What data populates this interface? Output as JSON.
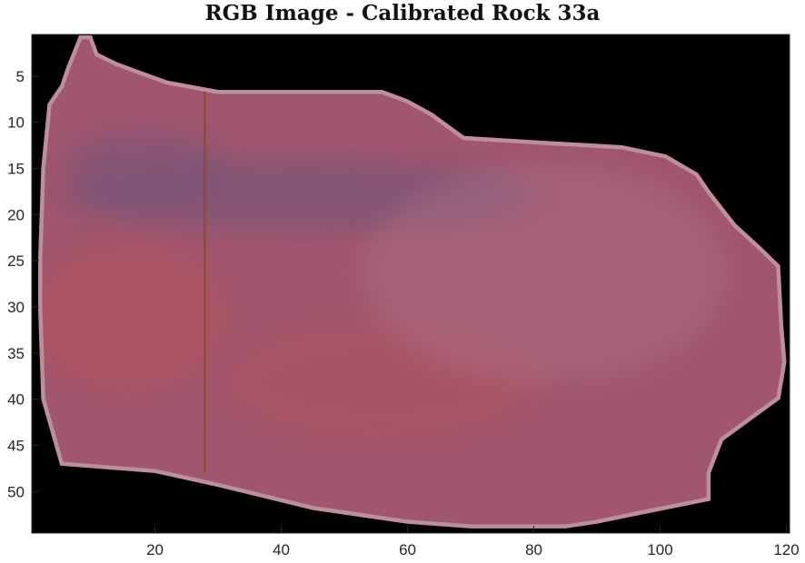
{
  "title": "RGB Image - Calibrated Rock 33a",
  "axes": {
    "x": {
      "range": [
        0.5,
        120.5
      ],
      "ticks": [
        20,
        40,
        60,
        80,
        100,
        120
      ]
    },
    "y": {
      "range": [
        0.5,
        54.5
      ],
      "ticks": [
        5,
        10,
        15,
        20,
        25,
        30,
        35,
        40,
        45,
        50
      ],
      "reversed": true
    }
  },
  "image": {
    "background_color": "#000000",
    "rock_base_color": "#a0566e",
    "bluish_band_color": "#7a5478",
    "red_patch_color": "#b4525e",
    "vertical_streak_color": "#8c4a30",
    "edge_color": "#c7a0b4"
  }
}
